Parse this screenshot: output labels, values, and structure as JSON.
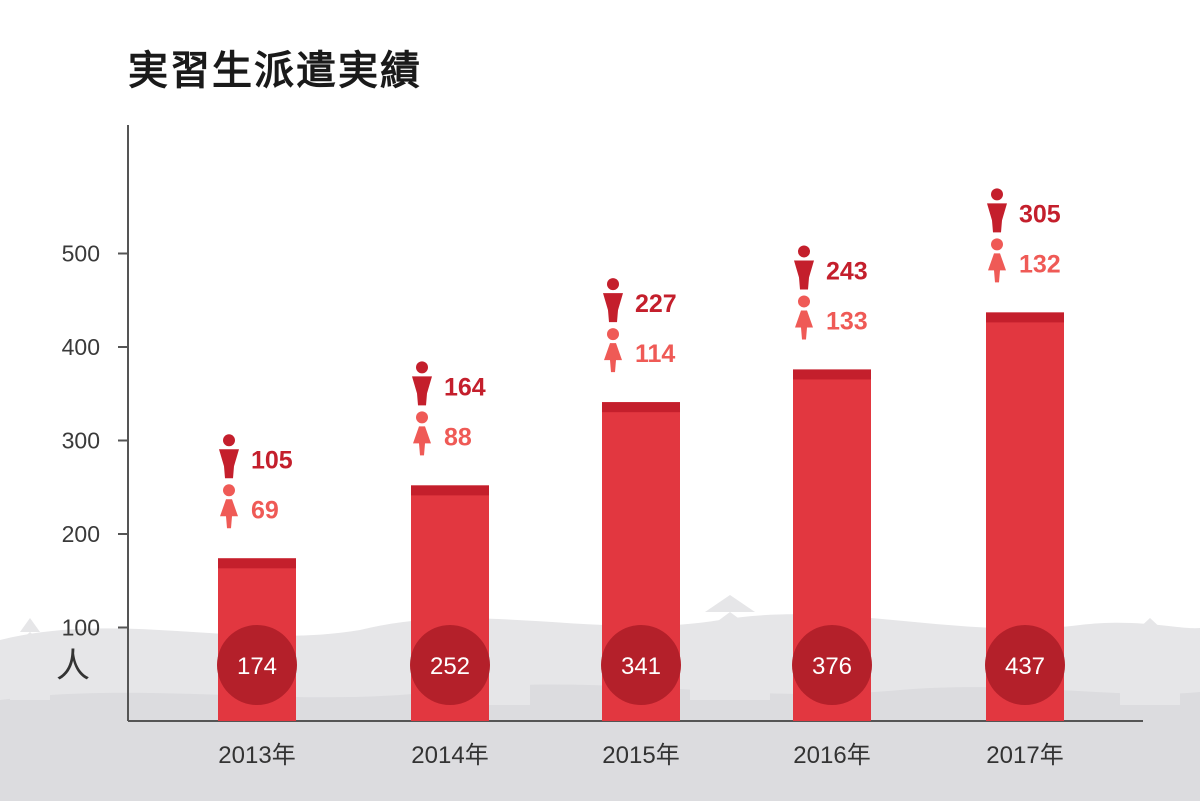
{
  "title": "実習生派遣実績",
  "unit": "人",
  "colors": {
    "bar": "#e23740",
    "bar_cap": "#c41f2c",
    "total_circle": "#b4202a",
    "male": "#c41f2c",
    "female": "#ef5a56",
    "axis": "#555555",
    "tick_text": "#3a3a3a",
    "skyline": "#e6e6e8"
  },
  "icons": {
    "male": "male-icon",
    "female": "female-icon"
  },
  "chart_data": {
    "type": "bar",
    "title": "実習生派遣実績",
    "ylabel": "人",
    "xlabel": "",
    "ylim": [
      0,
      580
    ],
    "yticks": [
      100,
      200,
      300,
      400,
      500
    ],
    "grid": false,
    "categories": [
      "2013年",
      "2014年",
      "2015年",
      "2016年",
      "2017年"
    ],
    "values": [
      174,
      252,
      341,
      376,
      437
    ],
    "series": [
      {
        "name": "",
        "values": [
          105,
          164,
          227,
          243,
          305
        ]
      },
      {
        "name": "",
        "values": [
          69,
          88,
          114,
          133,
          132
        ]
      }
    ]
  }
}
